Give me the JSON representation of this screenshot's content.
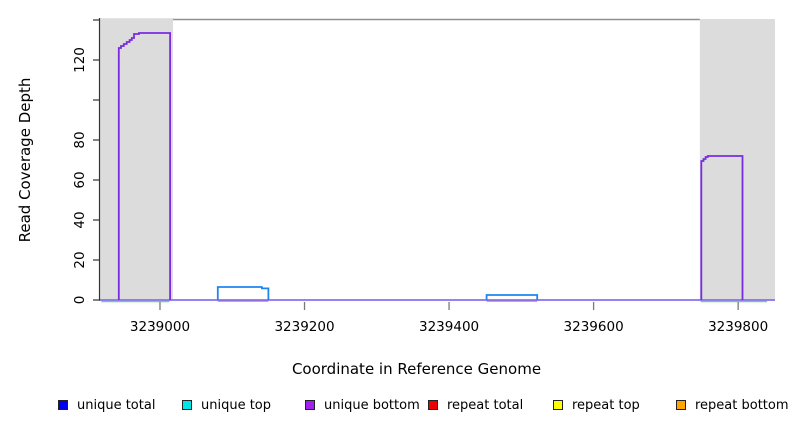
{
  "chart_data": {
    "type": "line",
    "title": "",
    "xlabel": "Coordinate in Reference Genome",
    "ylabel": "Read Coverage Depth",
    "x_range": [
      3238917,
      3239851
    ],
    "y_range": [
      0,
      140
    ],
    "x_ticks": [
      3239000,
      3239200,
      3239400,
      3239600,
      3239800
    ],
    "y_ticks": [
      0,
      20,
      40,
      60,
      80,
      100,
      120,
      140
    ],
    "y_tick_labels": [
      "0",
      "20",
      "40",
      "60",
      "80",
      "",
      "120",
      ""
    ],
    "grid": false,
    "legend_position": "bottom",
    "top_boundary_value": 140,
    "top_boundary_color": "#8f8f8f",
    "shaded_regions": [
      {
        "name": "repeat-region-left",
        "x1": 3238917,
        "x2": 3239018,
        "color": "#dcdcdc"
      },
      {
        "name": "repeat-region-right",
        "x1": 3239747,
        "x2": 3239851,
        "color": "#dcdcdc"
      }
    ],
    "series": [
      {
        "name": "region-marker-green",
        "color": "#7ccd7c",
        "segments": [
          [
            [
              3238919,
              0
            ],
            [
              3239013,
              0
            ]
          ],
          [
            [
              3239748,
              0
            ],
            [
              3239840,
              0
            ]
          ]
        ]
      },
      {
        "name": "repeat-total",
        "color": "#f05555",
        "segments": [
          [
            [
              3239080,
              0
            ],
            [
              3239150,
              0
            ]
          ],
          [
            [
              3239452,
              0
            ],
            [
              3239522,
              0
            ]
          ]
        ]
      },
      {
        "name": "zero-coverage-baseline",
        "color": "#8272f2",
        "segments": [
          [
            [
              3238917,
              0
            ],
            [
              3239851,
              0
            ]
          ]
        ]
      },
      {
        "name": "unique-total",
        "color": "#1e85f0",
        "segments": [
          [
            [
              3239080,
              0
            ],
            [
              3239080,
              6.5
            ],
            [
              3239141,
              6.5
            ],
            [
              3239141,
              5.8
            ],
            [
              3239150,
              5.8
            ],
            [
              3239150,
              0
            ]
          ],
          [
            [
              3239452,
              0
            ],
            [
              3239452,
              2.5
            ],
            [
              3239522,
              2.5
            ],
            [
              3239522,
              0
            ]
          ]
        ]
      },
      {
        "name": "unique-bottom",
        "color": "#7a2be2",
        "segments": [
          [
            [
              3238943,
              0
            ],
            [
              3238943,
              126
            ],
            [
              3238946,
              126
            ],
            [
              3238946,
              127
            ],
            [
              3238950,
              127
            ],
            [
              3238950,
              128
            ],
            [
              3238954,
              128
            ],
            [
              3238954,
              129
            ],
            [
              3238958,
              129
            ],
            [
              3238958,
              130
            ],
            [
              3238961,
              130
            ],
            [
              3238961,
              131
            ],
            [
              3238964,
              131
            ],
            [
              3238964,
              133
            ],
            [
              3238971,
              133
            ],
            [
              3238971,
              133.5
            ],
            [
              3239014,
              133.5
            ],
            [
              3239014,
              0
            ]
          ],
          [
            [
              3239749,
              0
            ],
            [
              3239749,
              69.5
            ],
            [
              3239752,
              69.5
            ],
            [
              3239752,
              70.5
            ],
            [
              3239755,
              70.5
            ],
            [
              3239755,
              71.5
            ],
            [
              3239758,
              71.5
            ],
            [
              3239758,
              72
            ],
            [
              3239806,
              72
            ],
            [
              3239806,
              0
            ]
          ]
        ]
      }
    ]
  },
  "legend": {
    "items": [
      {
        "label": "unique total",
        "color": "#0000ee"
      },
      {
        "label": "unique top",
        "color": "#00e5e5"
      },
      {
        "label": "unique bottom",
        "color": "#a020f0"
      },
      {
        "label": "repeat total",
        "color": "#ee0000"
      },
      {
        "label": "repeat top",
        "color": "#ffff00"
      },
      {
        "label": "repeat bottom",
        "color": "#ffa500"
      }
    ]
  }
}
